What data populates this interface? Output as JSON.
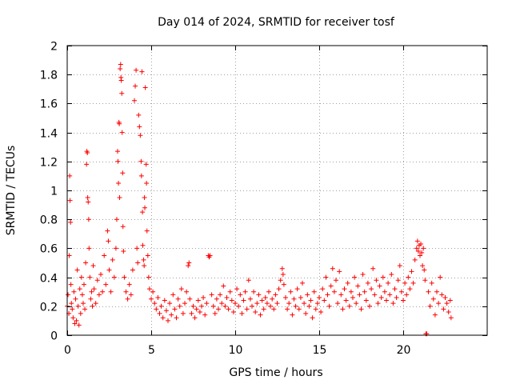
{
  "chart_data": {
    "type": "scatter",
    "title": "Day 014 of 2024, SRMTID for receiver tosf",
    "xlabel": "GPS time / hours",
    "ylabel": "SRMTID / TECUs",
    "xlim": [
      0,
      25
    ],
    "ylim": [
      0,
      2
    ],
    "xticks": [
      0,
      5,
      10,
      15,
      20
    ],
    "xtick_labels": [
      "0",
      "5",
      "10",
      "15",
      "20"
    ],
    "yticks": [
      0,
      0.2,
      0.4,
      0.6,
      0.8,
      1,
      1.2,
      1.4,
      1.6,
      1.8,
      2
    ],
    "ytick_labels": [
      "0",
      "0.2",
      "0.4",
      "0.6",
      "0.8",
      "1",
      "1.2",
      "1.4",
      "1.6",
      "1.8",
      "2"
    ],
    "grid": true,
    "marker": "plus",
    "color": "#ff0000",
    "series": [
      {
        "name": "SRMTID",
        "points": [
          [
            0.0,
            0.2
          ],
          [
            0.05,
            0.28
          ],
          [
            0.1,
            0.15
          ],
          [
            0.12,
            0.55
          ],
          [
            0.15,
            1.1
          ],
          [
            0.17,
            0.93
          ],
          [
            0.2,
            0.78
          ],
          [
            0.22,
            0.35
          ],
          [
            0.25,
            0.22
          ],
          [
            0.3,
            0.18
          ],
          [
            0.35,
            0.12
          ],
          [
            0.4,
            0.3
          ],
          [
            0.45,
            0.08
          ],
          [
            0.5,
            0.25
          ],
          [
            0.55,
            0.1
          ],
          [
            0.6,
            0.45
          ],
          [
            0.65,
            0.2
          ],
          [
            0.7,
            0.07
          ],
          [
            0.75,
            0.32
          ],
          [
            0.8,
            0.15
          ],
          [
            0.85,
            0.4
          ],
          [
            0.9,
            0.28
          ],
          [
            0.95,
            0.22
          ],
          [
            1.0,
            0.35
          ],
          [
            1.05,
            0.18
          ],
          [
            1.1,
            0.5
          ],
          [
            1.15,
            1.18
          ],
          [
            1.17,
            1.27
          ],
          [
            1.2,
            1.26
          ],
          [
            1.22,
            0.95
          ],
          [
            1.25,
            0.92
          ],
          [
            1.28,
            0.8
          ],
          [
            1.3,
            0.6
          ],
          [
            1.35,
            0.4
          ],
          [
            1.4,
            0.25
          ],
          [
            1.45,
            0.3
          ],
          [
            1.5,
            0.2
          ],
          [
            1.55,
            0.48
          ],
          [
            1.6,
            0.32
          ],
          [
            1.7,
            0.22
          ],
          [
            1.8,
            0.38
          ],
          [
            1.9,
            0.28
          ],
          [
            2.0,
            0.42
          ],
          [
            2.1,
            0.3
          ],
          [
            2.2,
            0.55
          ],
          [
            2.3,
            0.35
          ],
          [
            2.4,
            0.72
          ],
          [
            2.45,
            0.65
          ],
          [
            2.5,
            0.45
          ],
          [
            2.6,
            0.3
          ],
          [
            2.7,
            0.52
          ],
          [
            2.8,
            0.4
          ],
          [
            2.9,
            0.6
          ],
          [
            2.95,
            0.8
          ],
          [
            3.0,
            1.27
          ],
          [
            3.02,
            1.2
          ],
          [
            3.05,
            1.05
          ],
          [
            3.08,
            1.47
          ],
          [
            3.1,
            1.46
          ],
          [
            3.12,
            0.95
          ],
          [
            3.15,
            1.84
          ],
          [
            3.18,
            1.87
          ],
          [
            3.2,
            1.78
          ],
          [
            3.22,
            1.76
          ],
          [
            3.25,
            1.67
          ],
          [
            3.27,
            1.4
          ],
          [
            3.3,
            1.12
          ],
          [
            3.32,
            0.75
          ],
          [
            3.35,
            0.58
          ],
          [
            3.4,
            0.4
          ],
          [
            3.5,
            0.3
          ],
          [
            3.6,
            0.25
          ],
          [
            3.7,
            0.35
          ],
          [
            3.8,
            0.28
          ],
          [
            3.9,
            0.45
          ],
          [
            4.0,
            1.62
          ],
          [
            4.05,
            1.72
          ],
          [
            4.1,
            1.83
          ],
          [
            4.15,
            0.6
          ],
          [
            4.2,
            0.5
          ],
          [
            4.25,
            1.52
          ],
          [
            4.3,
            1.44
          ],
          [
            4.35,
            1.38
          ],
          [
            4.4,
            1.2
          ],
          [
            4.42,
            1.1
          ],
          [
            4.45,
            1.82
          ],
          [
            4.48,
            0.85
          ],
          [
            4.5,
            0.62
          ],
          [
            4.55,
            0.52
          ],
          [
            4.58,
            0.48
          ],
          [
            4.6,
            0.95
          ],
          [
            4.62,
            0.88
          ],
          [
            4.65,
            1.71
          ],
          [
            4.7,
            1.18
          ],
          [
            4.72,
            1.05
          ],
          [
            4.75,
            0.72
          ],
          [
            4.8,
            0.55
          ],
          [
            4.85,
            0.4
          ],
          [
            4.9,
            0.32
          ],
          [
            5.0,
            0.25
          ],
          [
            5.1,
            0.3
          ],
          [
            5.2,
            0.22
          ],
          [
            5.3,
            0.18
          ],
          [
            5.4,
            0.26
          ],
          [
            5.5,
            0.15
          ],
          [
            5.6,
            0.2
          ],
          [
            5.7,
            0.12
          ],
          [
            5.8,
            0.24
          ],
          [
            5.9,
            0.17
          ],
          [
            6.0,
            0.1
          ],
          [
            6.1,
            0.22
          ],
          [
            6.2,
            0.14
          ],
          [
            6.3,
            0.28
          ],
          [
            6.4,
            0.18
          ],
          [
            6.5,
            0.12
          ],
          [
            6.6,
            0.25
          ],
          [
            6.7,
            0.2
          ],
          [
            6.8,
            0.32
          ],
          [
            6.9,
            0.15
          ],
          [
            7.0,
            0.22
          ],
          [
            7.1,
            0.3
          ],
          [
            7.2,
            0.48
          ],
          [
            7.25,
            0.5
          ],
          [
            7.3,
            0.25
          ],
          [
            7.4,
            0.15
          ],
          [
            7.5,
            0.2
          ],
          [
            7.6,
            0.12
          ],
          [
            7.7,
            0.18
          ],
          [
            7.8,
            0.24
          ],
          [
            7.9,
            0.16
          ],
          [
            8.0,
            0.2
          ],
          [
            8.1,
            0.26
          ],
          [
            8.2,
            0.14
          ],
          [
            8.3,
            0.22
          ],
          [
            8.4,
            0.55
          ],
          [
            8.45,
            0.54
          ],
          [
            8.5,
            0.55
          ],
          [
            8.6,
            0.28
          ],
          [
            8.7,
            0.2
          ],
          [
            8.8,
            0.15
          ],
          [
            8.9,
            0.25
          ],
          [
            9.0,
            0.18
          ],
          [
            9.1,
            0.28
          ],
          [
            9.2,
            0.22
          ],
          [
            9.3,
            0.34
          ],
          [
            9.4,
            0.2
          ],
          [
            9.5,
            0.26
          ],
          [
            9.6,
            0.18
          ],
          [
            9.7,
            0.3
          ],
          [
            9.8,
            0.24
          ],
          [
            9.9,
            0.16
          ],
          [
            10.0,
            0.22
          ],
          [
            10.1,
            0.32
          ],
          [
            10.2,
            0.2
          ],
          [
            10.3,
            0.28
          ],
          [
            10.4,
            0.15
          ],
          [
            10.5,
            0.24
          ],
          [
            10.6,
            0.3
          ],
          [
            10.7,
            0.18
          ],
          [
            10.8,
            0.38
          ],
          [
            10.9,
            0.25
          ],
          [
            11.0,
            0.2
          ],
          [
            11.1,
            0.3
          ],
          [
            11.2,
            0.16
          ],
          [
            11.3,
            0.22
          ],
          [
            11.4,
            0.28
          ],
          [
            11.5,
            0.14
          ],
          [
            11.6,
            0.24
          ],
          [
            11.7,
            0.18
          ],
          [
            11.8,
            0.26
          ],
          [
            11.9,
            0.22
          ],
          [
            12.0,
            0.3
          ],
          [
            12.1,
            0.2
          ],
          [
            12.2,
            0.25
          ],
          [
            12.3,
            0.18
          ],
          [
            12.4,
            0.28
          ],
          [
            12.5,
            0.22
          ],
          [
            12.6,
            0.32
          ],
          [
            12.7,
            0.38
          ],
          [
            12.8,
            0.46
          ],
          [
            12.85,
            0.42
          ],
          [
            12.9,
            0.35
          ],
          [
            13.0,
            0.26
          ],
          [
            13.1,
            0.18
          ],
          [
            13.2,
            0.22
          ],
          [
            13.3,
            0.3
          ],
          [
            13.4,
            0.14
          ],
          [
            13.5,
            0.25
          ],
          [
            13.6,
            0.2
          ],
          [
            13.7,
            0.32
          ],
          [
            13.8,
            0.18
          ],
          [
            13.9,
            0.26
          ],
          [
            14.0,
            0.36
          ],
          [
            14.1,
            0.22
          ],
          [
            14.2,
            0.15
          ],
          [
            14.3,
            0.28
          ],
          [
            14.4,
            0.2
          ],
          [
            14.5,
            0.24
          ],
          [
            14.6,
            0.12
          ],
          [
            14.7,
            0.3
          ],
          [
            14.8,
            0.18
          ],
          [
            14.9,
            0.22
          ],
          [
            15.0,
            0.26
          ],
          [
            15.1,
            0.16
          ],
          [
            15.2,
            0.32
          ],
          [
            15.3,
            0.24
          ],
          [
            15.4,
            0.4
          ],
          [
            15.5,
            0.28
          ],
          [
            15.6,
            0.2
          ],
          [
            15.7,
            0.34
          ],
          [
            15.8,
            0.46
          ],
          [
            15.9,
            0.3
          ],
          [
            16.0,
            0.38
          ],
          [
            16.1,
            0.22
          ],
          [
            16.2,
            0.44
          ],
          [
            16.3,
            0.28
          ],
          [
            16.4,
            0.18
          ],
          [
            16.5,
            0.32
          ],
          [
            16.6,
            0.24
          ],
          [
            16.7,
            0.36
          ],
          [
            16.8,
            0.2
          ],
          [
            16.9,
            0.3
          ],
          [
            17.0,
            0.26
          ],
          [
            17.1,
            0.4
          ],
          [
            17.2,
            0.22
          ],
          [
            17.3,
            0.34
          ],
          [
            17.4,
            0.28
          ],
          [
            17.5,
            0.18
          ],
          [
            17.6,
            0.42
          ],
          [
            17.7,
            0.3
          ],
          [
            17.8,
            0.24
          ],
          [
            17.9,
            0.36
          ],
          [
            18.0,
            0.2
          ],
          [
            18.1,
            0.32
          ],
          [
            18.2,
            0.46
          ],
          [
            18.3,
            0.28
          ],
          [
            18.4,
            0.38
          ],
          [
            18.5,
            0.22
          ],
          [
            18.6,
            0.34
          ],
          [
            18.7,
            0.26
          ],
          [
            18.8,
            0.4
          ],
          [
            18.9,
            0.3
          ],
          [
            19.0,
            0.24
          ],
          [
            19.1,
            0.36
          ],
          [
            19.2,
            0.28
          ],
          [
            19.3,
            0.42
          ],
          [
            19.4,
            0.22
          ],
          [
            19.5,
            0.32
          ],
          [
            19.6,
            0.26
          ],
          [
            19.7,
            0.38
          ],
          [
            19.8,
            0.48
          ],
          [
            19.9,
            0.3
          ],
          [
            20.0,
            0.24
          ],
          [
            20.1,
            0.36
          ],
          [
            20.2,
            0.28
          ],
          [
            20.3,
            0.4
          ],
          [
            20.4,
            0.32
          ],
          [
            20.5,
            0.44
          ],
          [
            20.6,
            0.36
          ],
          [
            20.7,
            0.52
          ],
          [
            20.8,
            0.6
          ],
          [
            20.85,
            0.65
          ],
          [
            20.9,
            0.58
          ],
          [
            20.95,
            0.62
          ],
          [
            21.0,
            0.55
          ],
          [
            21.05,
            0.63
          ],
          [
            21.1,
            0.57
          ],
          [
            21.15,
            0.48
          ],
          [
            21.2,
            0.6
          ],
          [
            21.25,
            0.45
          ],
          [
            21.3,
            0.38
          ],
          [
            21.35,
            0.01
          ],
          [
            21.4,
            0.01
          ],
          [
            21.5,
            0.3
          ],
          [
            21.6,
            0.2
          ],
          [
            21.7,
            0.36
          ],
          [
            21.8,
            0.25
          ],
          [
            21.9,
            0.14
          ],
          [
            22.0,
            0.3
          ],
          [
            22.1,
            0.22
          ],
          [
            22.2,
            0.4
          ],
          [
            22.3,
            0.28
          ],
          [
            22.4,
            0.18
          ],
          [
            22.5,
            0.26
          ],
          [
            22.6,
            0.22
          ],
          [
            22.7,
            0.16
          ],
          [
            22.8,
            0.24
          ],
          [
            22.85,
            0.12
          ]
        ]
      }
    ]
  }
}
